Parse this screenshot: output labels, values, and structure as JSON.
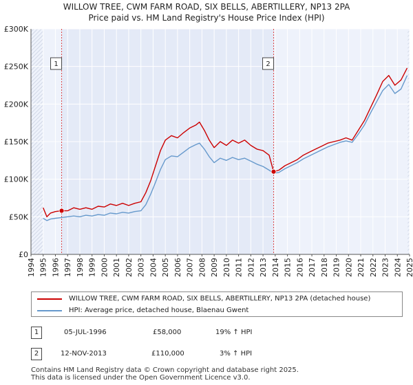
{
  "chart_data": {
    "type": "line",
    "title": "WILLOW TREE, CWM FARM ROAD, SIX BELLS, ABERTILLERY, NP13 2PA",
    "subtitle": "Price paid vs. HM Land Registry's House Price Index (HPI)",
    "xlim": [
      1994,
      2025
    ],
    "ylim": [
      0,
      300000
    ],
    "x_ticks": [
      "1994",
      "1995",
      "1996",
      "1997",
      "1998",
      "1999",
      "2000",
      "2001",
      "2002",
      "2003",
      "2004",
      "2005",
      "2006",
      "2007",
      "2008",
      "2009",
      "2010",
      "2011",
      "2012",
      "2013",
      "2014",
      "2015",
      "2016",
      "2017",
      "2018",
      "2019",
      "2020",
      "2021",
      "2022",
      "2023",
      "2024",
      "2025"
    ],
    "y_ticks": [
      {
        "value": 0,
        "label": "£0"
      },
      {
        "value": 50000,
        "label": "£50K"
      },
      {
        "value": 100000,
        "label": "£100K"
      },
      {
        "value": 150000,
        "label": "£150K"
      },
      {
        "value": 200000,
        "label": "£200K"
      },
      {
        "value": 250000,
        "label": "£250K"
      },
      {
        "value": 300000,
        "label": "£300K"
      }
    ],
    "grid": true,
    "series": [
      {
        "name": "WILLOW TREE, CWM FARM ROAD, SIX BELLS, ABERTILLERY, NP13 2PA (detached house)",
        "color": "#cc0000",
        "x": [
          1995.0,
          1995.3,
          1995.6,
          1996.0,
          1996.5,
          1997.0,
          1997.5,
          1998.0,
          1998.5,
          1999.0,
          1999.5,
          2000.0,
          2000.5,
          2001.0,
          2001.5,
          2002.0,
          2002.5,
          2003.0,
          2003.4,
          2003.8,
          2004.2,
          2004.6,
          2005.0,
          2005.5,
          2006.0,
          2006.5,
          2007.0,
          2007.5,
          2007.8,
          2008.2,
          2008.6,
          2009.0,
          2009.5,
          2010.0,
          2010.5,
          2011.0,
          2011.5,
          2012.0,
          2012.5,
          2013.0,
          2013.5,
          2013.87,
          2014.3,
          2014.8,
          2015.3,
          2015.8,
          2016.3,
          2016.8,
          2017.3,
          2017.8,
          2018.3,
          2018.8,
          2019.3,
          2019.8,
          2020.3,
          2020.8,
          2021.3,
          2021.8,
          2022.3,
          2022.8,
          2023.3,
          2023.8,
          2024.3,
          2024.8
        ],
        "y": [
          62000,
          50000,
          55000,
          57000,
          58000,
          58000,
          62000,
          60000,
          62000,
          60000,
          64000,
          63000,
          67000,
          65000,
          68000,
          65000,
          68000,
          70000,
          82000,
          98000,
          118000,
          138000,
          152000,
          158000,
          155000,
          162000,
          168000,
          172000,
          176000,
          165000,
          152000,
          142000,
          150000,
          145000,
          152000,
          148000,
          152000,
          145000,
          140000,
          138000,
          132000,
          110000,
          112000,
          118000,
          122000,
          126000,
          132000,
          136000,
          140000,
          144000,
          148000,
          150000,
          152000,
          155000,
          152000,
          165000,
          178000,
          195000,
          212000,
          230000,
          238000,
          225000,
          232000,
          248000
        ]
      },
      {
        "name": "HPI: Average price, detached house, Blaenau Gwent",
        "color": "#6699cc",
        "x": [
          1995.0,
          1995.3,
          1995.6,
          1996.0,
          1996.5,
          1997.0,
          1997.5,
          1998.0,
          1998.5,
          1999.0,
          1999.5,
          2000.0,
          2000.5,
          2001.0,
          2001.5,
          2002.0,
          2002.5,
          2003.0,
          2003.4,
          2003.8,
          2004.2,
          2004.6,
          2005.0,
          2005.5,
          2006.0,
          2006.5,
          2007.0,
          2007.5,
          2007.8,
          2008.2,
          2008.6,
          2009.0,
          2009.5,
          2010.0,
          2010.5,
          2011.0,
          2011.5,
          2012.0,
          2012.5,
          2013.0,
          2013.5,
          2013.87,
          2014.3,
          2014.8,
          2015.3,
          2015.8,
          2016.3,
          2016.8,
          2017.3,
          2017.8,
          2018.3,
          2018.8,
          2019.3,
          2019.8,
          2020.3,
          2020.8,
          2021.3,
          2021.8,
          2022.3,
          2022.8,
          2023.3,
          2023.8,
          2024.3,
          2024.8
        ],
        "y": [
          48000,
          45000,
          47000,
          48000,
          49000,
          50000,
          51000,
          50000,
          52000,
          51000,
          53000,
          52000,
          55000,
          54000,
          56000,
          55000,
          57000,
          58000,
          66000,
          80000,
          96000,
          113000,
          126000,
          131000,
          130000,
          136000,
          142000,
          146000,
          148000,
          140000,
          130000,
          122000,
          128000,
          125000,
          129000,
          126000,
          128000,
          124000,
          120000,
          117000,
          112000,
          108000,
          109000,
          114000,
          118000,
          122000,
          127000,
          131000,
          135000,
          139000,
          143000,
          146000,
          149000,
          151000,
          149000,
          160000,
          172000,
          188000,
          203000,
          218000,
          226000,
          214000,
          220000,
          238000
        ]
      }
    ],
    "transactions": [
      {
        "marker": "1",
        "date": "05-JUL-1996",
        "price": "£58,000",
        "hpi": "19% ↑ HPI",
        "x": 1996.51,
        "value": 58000
      },
      {
        "marker": "2",
        "date": "12-NOV-2013",
        "price": "£110,000",
        "hpi": "3% ↑ HPI",
        "x": 2013.87,
        "value": 110000
      }
    ]
  },
  "legend": {
    "property_label": "WILLOW TREE, CWM FARM ROAD, SIX BELLS, ABERTILLERY, NP13 2PA (detached house)",
    "hpi_label": "HPI: Average price, detached house, Blaenau Gwent"
  },
  "footer": {
    "line1": "Contains HM Land Registry data © Crown copyright and database right 2025.",
    "line2": "This data is licensed under the Open Government Licence v3.0."
  }
}
